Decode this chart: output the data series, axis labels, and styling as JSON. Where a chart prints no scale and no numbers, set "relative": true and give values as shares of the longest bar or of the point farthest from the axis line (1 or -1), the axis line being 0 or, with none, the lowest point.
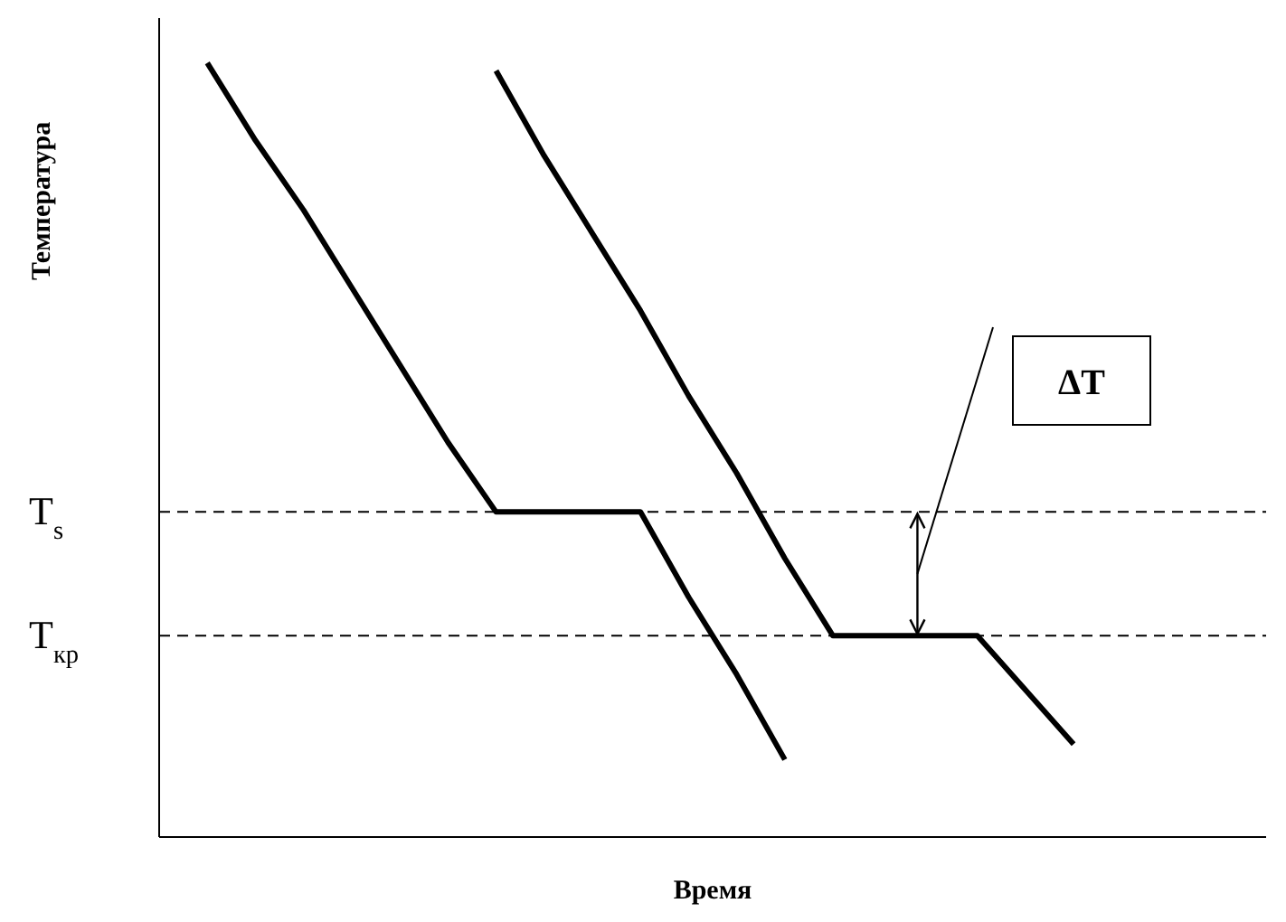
{
  "chart_data": {
    "type": "line",
    "relative": true,
    "xlabel": "Время",
    "ylabel": "Температура",
    "line_style": "solid",
    "categories": [
      null,
      null,
      null,
      null,
      null,
      null,
      null,
      null,
      null,
      null,
      null,
      null,
      null,
      null,
      null,
      null,
      null,
      null,
      null,
      null,
      null,
      null,
      null,
      null
    ],
    "series": [
      {
        "color": "#000000",
        "values": [
          null,
          1.0,
          0.9,
          0.81,
          0.71,
          0.61,
          0.51,
          0.42,
          0.42,
          0.42,
          0.42,
          0.31,
          0.21,
          0.1,
          null,
          null,
          null,
          null,
          null,
          null,
          null,
          null,
          null,
          null
        ]
      },
      {
        "color": "#000000",
        "values": [
          null,
          null,
          null,
          null,
          null,
          null,
          null,
          0.99,
          0.88,
          0.78,
          0.68,
          0.57,
          0.47,
          0.36,
          0.26,
          0.26,
          0.26,
          0.26,
          0.19,
          0.12,
          null,
          null,
          null,
          null
        ]
      }
    ],
    "ref_lines": [
      {
        "axis": "y",
        "value": 0.42,
        "label": "T$_{s}$",
        "color": "#000000",
        "line_style": "dashed"
      },
      {
        "axis": "y",
        "value": 0.26,
        "label": "T$_{кр}$",
        "color": "#000000",
        "line_style": "dashed"
      }
    ],
    "annotations": [
      "ΔT"
    ]
  }
}
